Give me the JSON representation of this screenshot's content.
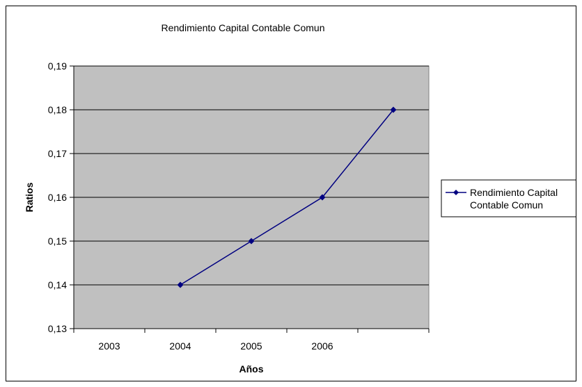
{
  "chart_data": {
    "type": "line",
    "title": "Rendimiento Capital Contable Comun",
    "xlabel": "Años",
    "ylabel": "Ratios",
    "categories": [
      "2003",
      "2004",
      "2005",
      "2006",
      ""
    ],
    "series": [
      {
        "name": "Rendimiento Capital Contable Comun",
        "name_lines": [
          "Rendimiento Capital",
          "Contable Comun"
        ],
        "values": [
          null,
          0.14,
          0.15,
          0.16,
          0.18
        ]
      }
    ],
    "ylim": [
      0.13,
      0.19
    ],
    "yticks": [
      "0,13",
      "0,14",
      "0,15",
      "0,16",
      "0,17",
      "0,18",
      "0,19"
    ],
    "grid": true,
    "legend": "right",
    "colors": {
      "series": "#000080",
      "plot_bg": "#c0c0c0",
      "grid": "#000000"
    }
  }
}
